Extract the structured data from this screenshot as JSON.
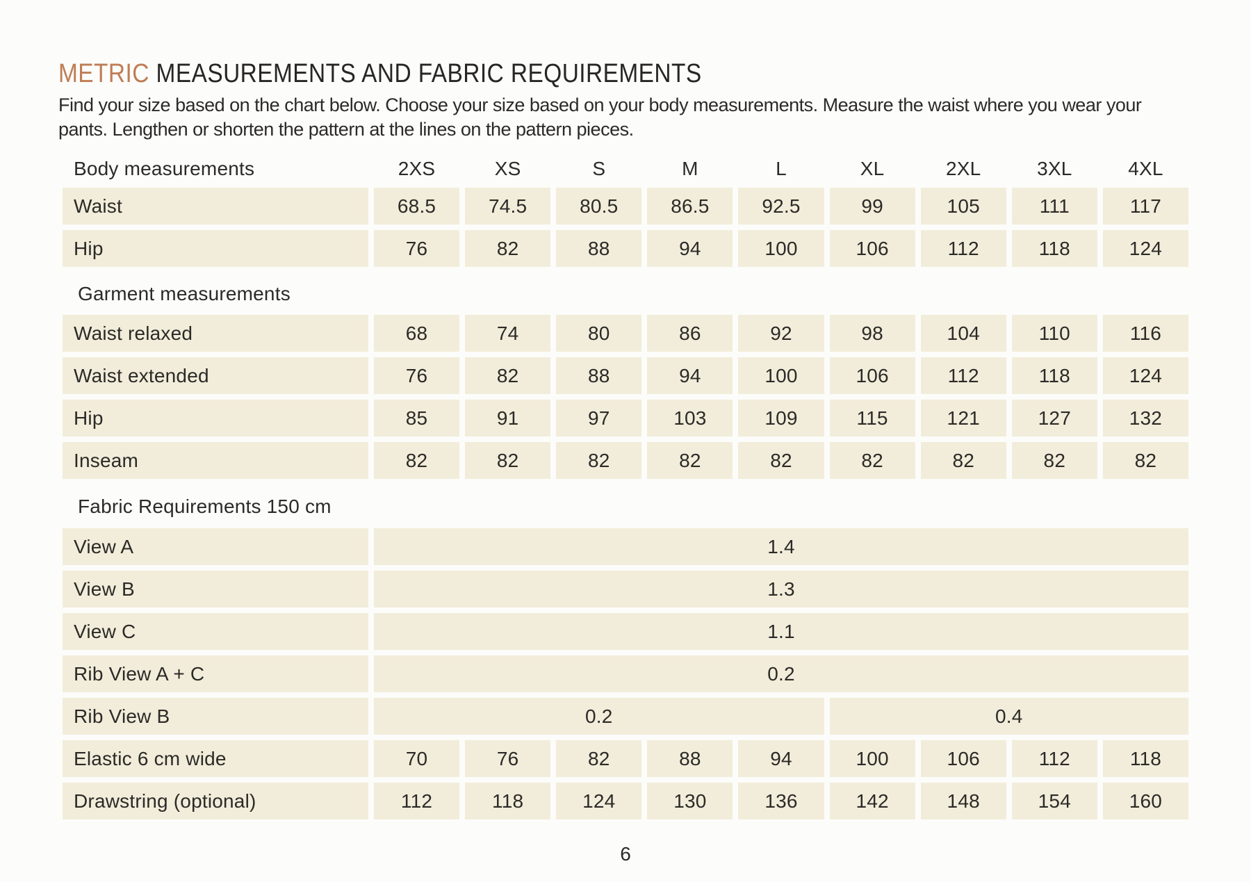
{
  "header": {
    "title_accent": "METRIC",
    "title_rest": "MEASUREMENTS AND FABRIC REQUIREMENTS",
    "intro_lines": [
      "Find your size based on the chart below. Choose your size based on your body measurements. Measure the waist where you wear your",
      "pants. Lengthen or shorten the pattern at the lines on the pattern pieces."
    ]
  },
  "colors": {
    "accent": "#bf7d55",
    "cell_background": "#f2edda",
    "text": "#2b2a27"
  },
  "table": {
    "header_label": "Body measurements",
    "sizes": [
      "2XS",
      "XS",
      "S",
      "M",
      "L",
      "XL",
      "2XL",
      "3XL",
      "4XL"
    ],
    "body_rows": [
      {
        "label": "Waist",
        "values": [
          "68.5",
          "74.5",
          "80.5",
          "86.5",
          "92.5",
          "99",
          "105",
          "111",
          "117"
        ]
      },
      {
        "label": "Hip",
        "values": [
          "76",
          "82",
          "88",
          "94",
          "100",
          "106",
          "112",
          "118",
          "124"
        ]
      }
    ],
    "garment_section_label": "Garment measurements",
    "garment_rows": [
      {
        "label": "Waist relaxed",
        "values": [
          "68",
          "74",
          "80",
          "86",
          "92",
          "98",
          "104",
          "110",
          "116"
        ]
      },
      {
        "label": "Waist extended",
        "values": [
          "76",
          "82",
          "88",
          "94",
          "100",
          "106",
          "112",
          "118",
          "124"
        ]
      },
      {
        "label": "Hip",
        "values": [
          "85",
          "91",
          "97",
          "103",
          "109",
          "115",
          "121",
          "127",
          "132"
        ]
      },
      {
        "label": "Inseam",
        "values": [
          "82",
          "82",
          "82",
          "82",
          "82",
          "82",
          "82",
          "82",
          "82"
        ]
      }
    ],
    "fabric_section_label": "Fabric Requirements 150 cm",
    "fabric_rows": [
      {
        "label": "View A",
        "spans": [
          {
            "cols": 9,
            "value": "1.4"
          }
        ]
      },
      {
        "label": "View B",
        "spans": [
          {
            "cols": 9,
            "value": "1.3"
          }
        ]
      },
      {
        "label": "View C",
        "spans": [
          {
            "cols": 9,
            "value": "1.1"
          }
        ]
      },
      {
        "label": "Rib View A + C",
        "spans": [
          {
            "cols": 9,
            "value": "0.2"
          }
        ]
      },
      {
        "label": "Rib View B",
        "spans": [
          {
            "cols": 5,
            "value": "0.2"
          },
          {
            "cols": 4,
            "value": "0.4"
          }
        ]
      },
      {
        "label": "Elastic 6 cm wide",
        "values": [
          "70",
          "76",
          "82",
          "88",
          "94",
          "100",
          "106",
          "112",
          "118"
        ]
      },
      {
        "label": "Drawstring (optional)",
        "values": [
          "112",
          "118",
          "124",
          "130",
          "136",
          "142",
          "148",
          "154",
          "160"
        ]
      }
    ]
  },
  "footer": {
    "page_number": "6"
  }
}
